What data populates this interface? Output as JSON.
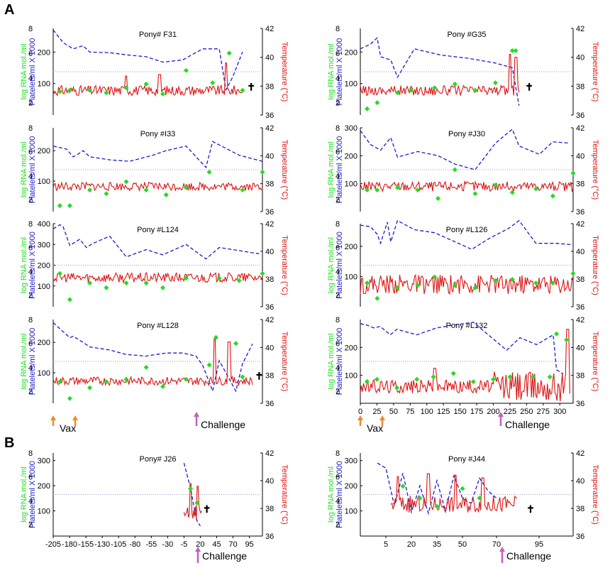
{
  "figure": {
    "section_a_label": "A",
    "section_b_label": "B",
    "y_left_label": "log RNA mol./ml",
    "y_mid_label": "Platelets/ml X 1000",
    "y_right_label": "Temperature (°C)",
    "vax_label": "Vax",
    "challenge_label": "Challenge",
    "death_symbol": "✝",
    "colors": {
      "rna": "#22dd22",
      "platelets": "#1a1acc",
      "temperature": "#dd1111",
      "threshold": "#9999cc",
      "vax_arrow": "#f08a24",
      "challenge_arrow": "#c060c0",
      "death": "#992244"
    }
  },
  "chart_data": [
    {
      "type": "line",
      "title": "Pony# F31",
      "xticks_shown": false,
      "x_range": [
        0,
        315
      ],
      "rna_ylim": [
        1,
        8
      ],
      "rna_ticks": [
        2,
        4,
        6,
        8
      ],
      "platelet_ylim": [
        0,
        275
      ],
      "platelet_ticks": [
        100,
        200
      ],
      "temp_ylim": [
        36,
        42
      ],
      "temp_ticks": [
        36,
        38,
        40,
        42
      ],
      "threshold_temp": 39,
      "platelets": {
        "x": [
          0,
          15,
          30,
          45,
          55,
          85,
          115,
          140,
          165,
          195,
          225,
          235,
          250,
          260,
          270,
          285
        ],
        "y": [
          270,
          230,
          210,
          220,
          200,
          198,
          190,
          185,
          168,
          175,
          210,
          210,
          210,
          80,
          120,
          200
        ]
      },
      "rna": {
        "x": [
          10,
          25,
          55,
          80,
          110,
          140,
          165,
          200,
          240,
          265,
          285
        ],
        "y": [
          2.9,
          3.0,
          3.0,
          2.8,
          3.2,
          3.5,
          2.7,
          4.6,
          3.6,
          6.0,
          3.0
        ]
      },
      "temperature": {
        "x_start": 0,
        "x_end": 285,
        "base": 37.7,
        "amp": 0.35,
        "seed": 31,
        "spikes": [
          {
            "x": 110,
            "v": 38.7
          },
          {
            "x": 160,
            "v": 38.8
          },
          {
            "x": 260,
            "v": 39.6
          }
        ]
      },
      "death_x": 298
    },
    {
      "type": "line",
      "title": "Pony #G35",
      "xticks_shown": false,
      "x_range": [
        0,
        315
      ],
      "rna_ylim": [
        1,
        8
      ],
      "rna_ticks": [
        2,
        4,
        6,
        8
      ],
      "platelet_ylim": [
        0,
        275
      ],
      "platelet_ticks": [
        100,
        200
      ],
      "temp_ylim": [
        36,
        42
      ],
      "temp_ticks": [
        36,
        38,
        40,
        42
      ],
      "threshold_temp": 39,
      "platelets": {
        "x": [
          0,
          15,
          25,
          30,
          45,
          55,
          80,
          120,
          160,
          200,
          225,
          235
        ],
        "y": [
          210,
          225,
          245,
          185,
          175,
          120,
          210,
          190,
          180,
          165,
          150,
          30
        ]
      },
      "rna": {
        "x": [
          10,
          25,
          55,
          75,
          110,
          140,
          170,
          200,
          225,
          230
        ],
        "y": [
          1.5,
          2.0,
          2.8,
          3.0,
          3.2,
          3.5,
          3.0,
          3.6,
          6.2,
          6.2
        ]
      },
      "temperature": {
        "x_start": 0,
        "x_end": 235,
        "base": 37.7,
        "amp": 0.35,
        "seed": 35,
        "spikes": [
          {
            "x": 222,
            "v": 40.2
          },
          {
            "x": 230,
            "v": 40.0
          }
        ]
      },
      "death_x": 250
    },
    {
      "type": "line",
      "title": "Pony #I33",
      "xticks_shown": false,
      "x_range": [
        0,
        315
      ],
      "rna_ylim": [
        1,
        8
      ],
      "rna_ticks": [
        2,
        4,
        6,
        8
      ],
      "platelet_ylim": [
        0,
        275
      ],
      "platelet_ticks": [
        100,
        200
      ],
      "temp_ylim": [
        36,
        42
      ],
      "temp_ticks": [
        36,
        38,
        40,
        42
      ],
      "threshold_temp": 39,
      "platelets": {
        "x": [
          0,
          20,
          30,
          35,
          45,
          55,
          85,
          115,
          150,
          170,
          200,
          230,
          240,
          280,
          315
        ],
        "y": [
          215,
          205,
          180,
          185,
          200,
          180,
          170,
          165,
          185,
          200,
          215,
          145,
          230,
          185,
          165
        ]
      },
      "rna": {
        "x": [
          10,
          25,
          55,
          80,
          110,
          140,
          170,
          200,
          235,
          285,
          315
        ],
        "y": [
          1.5,
          1.5,
          2.8,
          2.5,
          3.5,
          2.8,
          2.4,
          3.0,
          4.3,
          2.8,
          4.3
        ]
      },
      "temperature": {
        "x_start": 0,
        "x_end": 315,
        "base": 37.8,
        "amp": 0.3,
        "seed": 33,
        "spikes": []
      },
      "death_x": null
    },
    {
      "type": "line",
      "title": "Pony #J30",
      "xticks_shown": false,
      "x_range": [
        0,
        315
      ],
      "rna_ylim": [
        1,
        8
      ],
      "rna_ticks": [
        2,
        4,
        6,
        8
      ],
      "platelet_ylim": [
        0,
        300
      ],
      "platelet_ticks": [
        100,
        200,
        300
      ],
      "temp_ylim": [
        36,
        42
      ],
      "temp_ticks": [
        36,
        38,
        40,
        42
      ],
      "threshold_temp": 39,
      "platelets": {
        "x": [
          0,
          15,
          30,
          45,
          55,
          85,
          115,
          140,
          170,
          200,
          225,
          235,
          265,
          285,
          310
        ],
        "y": [
          290,
          240,
          220,
          265,
          195,
          215,
          200,
          170,
          150,
          245,
          295,
          235,
          205,
          250,
          245
        ]
      },
      "rna": {
        "x": [
          10,
          25,
          55,
          85,
          115,
          140,
          170,
          200,
          225,
          260,
          285,
          315
        ],
        "y": [
          2.8,
          2.8,
          3.0,
          2.8,
          2.1,
          4.5,
          2.5,
          3.2,
          2.6,
          2.9,
          2.3,
          4.2
        ]
      },
      "temperature": {
        "x_start": 0,
        "x_end": 315,
        "base": 37.8,
        "amp": 0.35,
        "seed": 30,
        "spikes": []
      },
      "death_x": null
    },
    {
      "type": "line",
      "title": "Pony #L124",
      "xticks_shown": false,
      "x_range": [
        0,
        315
      ],
      "rna_ylim": [
        1,
        8
      ],
      "rna_ticks": [
        2,
        4,
        6,
        8
      ],
      "platelet_ylim": [
        0,
        400
      ],
      "platelet_ticks": [
        100,
        200,
        300,
        400
      ],
      "temp_ylim": [
        36,
        42
      ],
      "temp_ticks": [
        36,
        38,
        40,
        42
      ],
      "threshold_temp": 39,
      "platelets": {
        "x": [
          0,
          10,
          15,
          25,
          40,
          50,
          60,
          85,
          110,
          140,
          165,
          200,
          230,
          250,
          280,
          310
        ],
        "y": [
          375,
          395,
          385,
          295,
          325,
          285,
          305,
          340,
          240,
          275,
          250,
          300,
          230,
          285,
          270,
          255
        ]
      },
      "rna": {
        "x": [
          10,
          25,
          55,
          80,
          110,
          140,
          165,
          200,
          250,
          280,
          315
        ],
        "y": [
          3.8,
          1.6,
          3.0,
          2.6,
          3.0,
          3.0,
          2.6,
          3.4,
          3.4,
          3.2,
          3.8
        ]
      },
      "temperature": {
        "x_start": 0,
        "x_end": 315,
        "base": 38.1,
        "amp": 0.35,
        "seed": 124,
        "spikes": []
      },
      "death_x": null
    },
    {
      "type": "line",
      "title": "Pony #L126",
      "xticks_shown": false,
      "x_range": [
        0,
        315
      ],
      "rna_ylim": [
        1,
        8
      ],
      "rna_ticks": [
        2,
        4,
        6,
        8
      ],
      "platelet_ylim": [
        0,
        275
      ],
      "platelet_ticks": [
        100,
        200
      ],
      "temp_ylim": [
        36,
        42
      ],
      "temp_ticks": [
        36,
        38,
        40,
        42
      ],
      "threshold_temp": 39,
      "platelets": {
        "x": [
          0,
          15,
          25,
          30,
          40,
          45,
          55,
          80,
          110,
          140,
          165,
          190,
          220,
          235,
          260,
          290,
          315
        ],
        "y": [
          270,
          265,
          240,
          210,
          280,
          215,
          285,
          255,
          245,
          215,
          190,
          225,
          260,
          285,
          210,
          210,
          205
        ]
      },
      "rna": {
        "x": [
          10,
          25,
          55,
          85,
          110,
          140,
          170,
          200,
          225,
          260,
          285,
          315
        ],
        "y": [
          3.0,
          1.7,
          2.6,
          2.8,
          3.5,
          2.8,
          2.6,
          3.2,
          3.3,
          3.0,
          3.0,
          3.8
        ]
      },
      "temperature": {
        "x_start": 0,
        "x_end": 315,
        "base": 37.6,
        "amp": 0.7,
        "seed": 126,
        "spikes": []
      },
      "death_x": null
    },
    {
      "type": "line",
      "title": "Pony #L128",
      "xticks_shown": false,
      "x_range": [
        0,
        315
      ],
      "rna_ylim": [
        1,
        8
      ],
      "rna_ticks": [
        2,
        4,
        6,
        8
      ],
      "platelet_ylim": [
        0,
        275
      ],
      "platelet_ticks": [
        100,
        200
      ],
      "temp_ylim": [
        36,
        42
      ],
      "temp_ticks": [
        36,
        38,
        40,
        42
      ],
      "threshold_temp": 39,
      "platelets": {
        "x": [
          0,
          15,
          25,
          30,
          45,
          55,
          85,
          110,
          140,
          170,
          195,
          215,
          225,
          240,
          250,
          275,
          285,
          300
        ],
        "y": [
          265,
          235,
          215,
          220,
          200,
          185,
          175,
          160,
          155,
          165,
          165,
          155,
          125,
          40,
          140,
          40,
          130,
          195
        ]
      },
      "rna": {
        "x": [
          10,
          25,
          55,
          80,
          110,
          140,
          165,
          200,
          235,
          245,
          275,
          285
        ],
        "y": [
          2.8,
          1.4,
          2.3,
          2.8,
          3.0,
          4.0,
          2.4,
          3.0,
          4.2,
          6.5,
          6.0,
          3.2
        ]
      },
      "temperature": {
        "x_start": 0,
        "x_end": 300,
        "base": 37.6,
        "amp": 0.3,
        "seed": 128,
        "spikes": [
          {
            "x": 243,
            "v": 40.6
          },
          {
            "x": 265,
            "v": 40.4
          }
        ]
      },
      "death_x": 310
    },
    {
      "type": "line",
      "title": "Pony #L132",
      "xticks_shown": true,
      "x_range": [
        0,
        320
      ],
      "x_ticks": [
        0,
        25,
        50,
        75,
        100,
        125,
        150,
        175,
        200,
        225,
        250,
        275,
        300
      ],
      "rna_ylim": [
        1,
        8
      ],
      "rna_ticks": [
        2,
        4,
        6,
        8
      ],
      "platelet_ylim": [
        0,
        300
      ],
      "platelet_ticks": [
        100,
        200
      ],
      "temp_ylim": [
        36,
        42
      ],
      "temp_ticks": [
        36,
        38,
        40,
        42
      ],
      "threshold_temp": 39,
      "platelets": {
        "x": [
          0,
          10,
          20,
          30,
          45,
          55,
          85,
          115,
          140,
          170,
          200,
          220,
          240,
          265,
          290,
          295,
          305
        ],
        "y": [
          285,
          280,
          270,
          275,
          245,
          265,
          245,
          270,
          280,
          290,
          230,
          190,
          235,
          210,
          245,
          120,
          105
        ]
      },
      "rna": {
        "x": [
          10,
          25,
          55,
          85,
          110,
          140,
          170,
          200,
          225,
          260,
          285,
          295,
          310
        ],
        "y": [
          2.8,
          3.0,
          2.3,
          3.0,
          3.2,
          3.5,
          2.8,
          3.0,
          3.2,
          3.2,
          3.2,
          6.8,
          6.3
        ]
      },
      "temperature": {
        "x_start": 0,
        "x_end": 315,
        "base": 37.2,
        "amp": 0.5,
        "seed": 132,
        "amp_late": 1.1,
        "late_x": 200,
        "spikes": [
          {
            "x": 112,
            "v": 38.5
          },
          {
            "x": 312,
            "v": 41.3
          }
        ]
      },
      "death_x": null
    },
    {
      "type": "line",
      "title": "Pony# J26",
      "xticks_shown": true,
      "x_range": [
        -205,
        115
      ],
      "x_ticks": [
        -205,
        -180,
        -155,
        -130,
        -105,
        -80,
        -55,
        -30,
        -5,
        20,
        45,
        70,
        95
      ],
      "rna_ylim": [
        1,
        8
      ],
      "rna_ticks": [
        2,
        4,
        6,
        8
      ],
      "platelet_ylim": [
        0,
        330
      ],
      "platelet_ticks": [
        100,
        200,
        300
      ],
      "temp_ylim": [
        36,
        42
      ],
      "temp_ticks": [
        36,
        38,
        40,
        42
      ],
      "threshold_temp": 39,
      "platelets": {
        "x": [
          -5,
          0,
          5,
          10,
          15,
          20
        ],
        "y": [
          290,
          240,
          190,
          120,
          60,
          40
        ]
      },
      "rna": {
        "x": [
          5,
          15
        ],
        "y": [
          5.0,
          3.8
        ]
      },
      "temperature": {
        "x_start": -5,
        "x_end": 22,
        "base": 37.8,
        "amp": 0.6,
        "seed": 26,
        "spikes": [
          {
            "x": 5,
            "v": 39.8
          },
          {
            "x": 16,
            "v": 39.6
          }
        ]
      },
      "death_x": 30
    },
    {
      "type": "line",
      "title": "Pony #J44",
      "xticks_shown": true,
      "x_range": [
        -10,
        115
      ],
      "x_ticks": [
        5,
        20,
        35,
        50,
        70,
        95
      ],
      "rna_ylim": [
        1,
        8
      ],
      "rna_ticks": [
        2,
        4,
        6,
        8
      ],
      "platelet_ylim": [
        0,
        330
      ],
      "platelet_ticks": [
        100,
        200,
        300
      ],
      "temp_ylim": [
        36,
        42
      ],
      "temp_ticks": [
        36,
        38,
        40,
        42
      ],
      "threshold_temp": 39,
      "platelets": {
        "x": [
          0,
          5,
          10,
          15,
          20,
          25,
          30,
          35,
          40,
          45,
          50,
          55,
          60,
          65,
          70
        ],
        "y": [
          290,
          270,
          120,
          250,
          95,
          200,
          90,
          220,
          100,
          240,
          150,
          130,
          230,
          180,
          150
        ]
      },
      "rna": {
        "x": [
          15,
          25,
          35,
          50,
          60
        ],
        "y": [
          5.2,
          4.2,
          3.5,
          5.0,
          4.2
        ]
      },
      "temperature": {
        "x_start": 8,
        "x_end": 82,
        "base": 38.3,
        "amp": 0.6,
        "seed": 44,
        "spikes": [
          {
            "x": 12,
            "v": 40.3
          },
          {
            "x": 30,
            "v": 40.5
          },
          {
            "x": 46,
            "v": 40.4
          },
          {
            "x": 62,
            "v": 40.2
          }
        ]
      },
      "death_x": 90
    }
  ]
}
